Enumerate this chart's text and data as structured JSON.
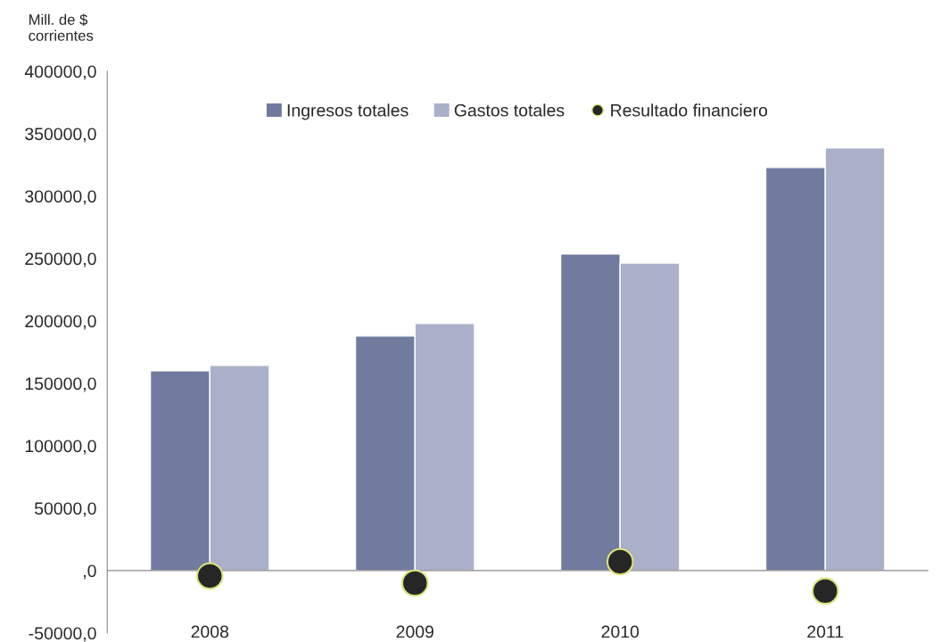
{
  "chart_data": {
    "type": "bar",
    "ylabel": "Mill. de $\ncorrientes",
    "categories": [
      "2008",
      "2009",
      "2010",
      "2011"
    ],
    "series": [
      {
        "name": "Ingresos totales",
        "color": "#717ba0",
        "values": [
          160000,
          187900,
          253600,
          322900
        ]
      },
      {
        "name": "Gastos totales",
        "color": "#aab0ca",
        "values": [
          164300,
          197900,
          246400,
          338600
        ]
      },
      {
        "name": "Resultado financiero",
        "type": "scatter",
        "color": "#262626",
        "values": [
          -4300,
          -10000,
          7100,
          -16400
        ]
      }
    ],
    "ylim": [
      -50000,
      400000
    ],
    "yticks": [
      {
        "value": -50000,
        "label": "-50000,0"
      },
      {
        "value": 0,
        "label": ",0"
      },
      {
        "value": 50000,
        "label": "50000,0"
      },
      {
        "value": 100000,
        "label": "100000,0"
      },
      {
        "value": 150000,
        "label": "150000,0"
      },
      {
        "value": 200000,
        "label": "200000,0"
      },
      {
        "value": 250000,
        "label": "250000,0"
      },
      {
        "value": 300000,
        "label": "300000,0"
      },
      {
        "value": 350000,
        "label": "350000,0"
      },
      {
        "value": 400000,
        "label": "400000,0"
      }
    ],
    "legend": "top",
    "marker": "circle"
  }
}
